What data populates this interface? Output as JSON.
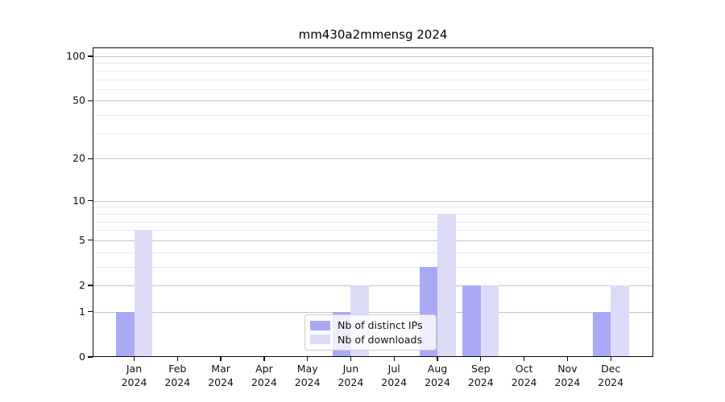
{
  "title": "mm430a2mmensg 2024",
  "colors": {
    "distinct_ips_bar": "#a9a9f6",
    "downloads_bar": "#dcdcf9",
    "grid_major": "#c3c3c3",
    "grid_minor": "#e9e9e9",
    "axis": "#0a0a0a",
    "text": "#111111",
    "legend_border": "#cfcfcf",
    "background": "#ffffff"
  },
  "chart_data": {
    "type": "bar",
    "title": "mm430a2mmensg 2024",
    "categories": [
      "Jan",
      "Feb",
      "Mar",
      "Apr",
      "May",
      "Jun",
      "Jul",
      "Aug",
      "Sep",
      "Oct",
      "Nov",
      "Dec"
    ],
    "year_label": "2024",
    "series": [
      {
        "name": "Nb of distinct IPs",
        "key": "distinct-ips",
        "color": "#a9a9f6",
        "values": [
          1,
          0,
          0,
          0,
          0,
          1,
          0,
          3,
          2,
          0,
          0,
          1
        ]
      },
      {
        "name": "Nb of downloads",
        "key": "downloads",
        "color": "#dcdcf9",
        "values": [
          6,
          0,
          0,
          0,
          0,
          2,
          0,
          8,
          2,
          0,
          0,
          2
        ]
      }
    ],
    "xlabel": "",
    "ylabel": "",
    "y_scale": "log10(1+x)",
    "y_ticks_major": [
      0,
      1,
      2,
      5,
      10,
      20,
      50,
      100
    ],
    "y_ticks_minor": [
      3,
      4,
      6,
      7,
      8,
      9,
      30,
      40,
      60,
      70,
      80,
      90
    ],
    "ylim": [
      0,
      115
    ],
    "grid": true,
    "legend_position": "lower center inside"
  }
}
